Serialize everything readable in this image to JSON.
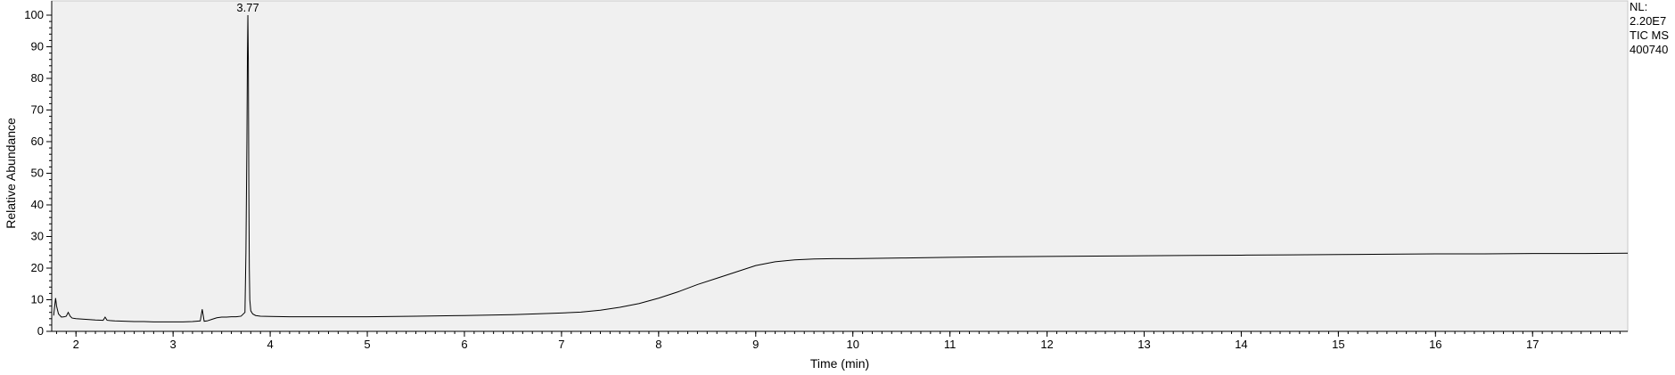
{
  "chart_data": {
    "type": "line",
    "xlabel": "Time (min)",
    "ylabel": "Relative Abundance",
    "xlim": [
      1.75,
      17.98
    ],
    "ylim": [
      0,
      100
    ],
    "x_ticks": [
      2,
      3,
      4,
      5,
      6,
      7,
      8,
      9,
      10,
      11,
      12,
      13,
      14,
      15,
      16,
      17
    ],
    "y_ticks": [
      0,
      10,
      20,
      30,
      40,
      50,
      60,
      70,
      80,
      90,
      100
    ],
    "grid": false,
    "background": "#f0f0f0",
    "line_color": "#000000",
    "info_text": [
      "NL:",
      "2.20E7",
      "TIC  MS",
      "400740"
    ],
    "peak_annotations": [
      {
        "x": 3.77,
        "y": 100,
        "label": "3.77"
      }
    ],
    "series": [
      {
        "x": [
          1.77,
          1.79,
          1.8,
          1.82,
          1.85,
          1.88,
          1.9,
          1.92,
          1.94,
          1.96,
          2.0,
          2.1,
          2.2,
          2.28,
          2.3,
          2.32,
          2.35,
          2.4,
          2.5,
          2.6,
          2.7,
          2.8,
          2.9,
          3.0,
          3.1,
          3.2,
          3.28,
          3.3,
          3.32,
          3.35,
          3.4,
          3.45,
          3.5,
          3.55,
          3.6,
          3.65,
          3.7,
          3.74,
          3.75,
          3.76,
          3.765,
          3.77,
          3.775,
          3.78,
          3.785,
          3.79,
          3.8,
          3.82,
          3.85,
          3.9,
          4.0,
          4.2,
          4.5,
          5.0,
          5.5,
          6.0,
          6.5,
          7.0,
          7.2,
          7.4,
          7.6,
          7.8,
          8.0,
          8.2,
          8.4,
          8.6,
          8.8,
          9.0,
          9.2,
          9.4,
          9.6,
          9.8,
          10.0,
          10.5,
          11.0,
          11.5,
          12.0,
          12.5,
          13.0,
          13.5,
          14.0,
          14.5,
          15.0,
          15.5,
          16.0,
          16.5,
          17.0,
          17.5,
          17.98
        ],
        "y": [
          5.0,
          10.5,
          8.0,
          5.5,
          4.5,
          4.6,
          4.8,
          6.0,
          4.8,
          4.2,
          4.0,
          3.8,
          3.6,
          3.5,
          4.5,
          3.5,
          3.4,
          3.3,
          3.2,
          3.1,
          3.1,
          3.0,
          3.0,
          3.0,
          3.0,
          3.1,
          3.3,
          7.0,
          3.2,
          3.3,
          3.8,
          4.3,
          4.5,
          4.5,
          4.6,
          4.6,
          4.8,
          6.0,
          25.0,
          60.0,
          85.0,
          100.0,
          85.0,
          45.0,
          20.0,
          10.0,
          6.5,
          5.5,
          5.0,
          4.8,
          4.7,
          4.6,
          4.6,
          4.6,
          4.8,
          5.0,
          5.3,
          5.8,
          6.1,
          6.7,
          7.6,
          8.8,
          10.5,
          12.5,
          14.8,
          16.8,
          18.8,
          20.8,
          22.0,
          22.6,
          22.9,
          23.0,
          23.0,
          23.2,
          23.4,
          23.6,
          23.7,
          23.8,
          23.9,
          24.0,
          24.1,
          24.2,
          24.3,
          24.4,
          24.5,
          24.5,
          24.6,
          24.6,
          24.7
        ]
      }
    ]
  }
}
